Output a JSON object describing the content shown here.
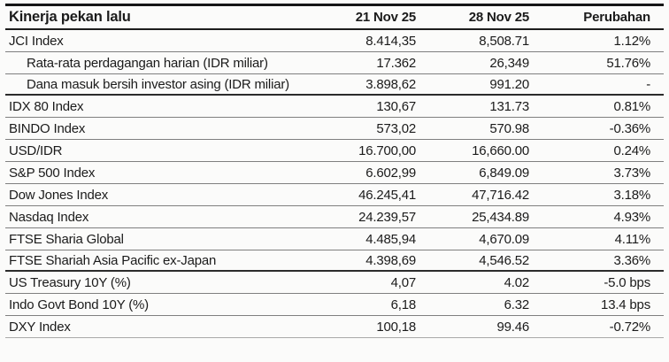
{
  "colors": {
    "background": "#fbfbfa",
    "text": "#1b1b1b",
    "heavy_rule": "#161616",
    "thin_rule": "#7f7f7f",
    "section_rule": "#2b2b2b"
  },
  "chart_data": {
    "type": "table",
    "title": "Kinerja pekan lalu",
    "columns": [
      "21 Nov 25",
      "28 Nov 25",
      "Perubahan"
    ],
    "rows": [
      {
        "label": "JCI Index",
        "prev": "8.414,35",
        "curr": "8,508.71",
        "change": "1.12%"
      },
      {
        "label": "Rata-rata perdagangan harian (IDR miliar)",
        "prev": "17.362",
        "curr": "26,349",
        "change": "51.76%"
      },
      {
        "label": "Dana masuk bersih investor asing (IDR miliar)",
        "prev": "3.898,62",
        "curr": "991.20",
        "change": "-"
      },
      {
        "label": "IDX 80 Index",
        "prev": "130,67",
        "curr": "131.73",
        "change": "0.81%"
      },
      {
        "label": "BINDO Index",
        "prev": "573,02",
        "curr": "570.98",
        "change": "-0.36%"
      },
      {
        "label": "USD/IDR",
        "prev": "16.700,00",
        "curr": "16,660.00",
        "change": "0.24%"
      },
      {
        "label": "S&P 500 Index",
        "prev": "6.602,99",
        "curr": "6,849.09",
        "change": "3.73%"
      },
      {
        "label": "Dow Jones Index",
        "prev": "46.245,41",
        "curr": "47,716.42",
        "change": "3.18%"
      },
      {
        "label": "Nasdaq Index",
        "prev": "24.239,57",
        "curr": "25,434.89",
        "change": "4.93%"
      },
      {
        "label": "FTSE Sharia Global",
        "prev": "4.485,94",
        "curr": "4,670.09",
        "change": "4.11%"
      },
      {
        "label": "FTSE Shariah Asia Pacific ex-Japan",
        "prev": "4.398,69",
        "curr": "4,546.52",
        "change": "3.36%"
      },
      {
        "label": "US Treasury 10Y (%)",
        "prev": "4,07",
        "curr": "4.02",
        "change": "-5.0 bps"
      },
      {
        "label": "Indo Govt Bond 10Y (%)",
        "prev": "6,18",
        "curr": "6.32",
        "change": "13.4 bps"
      },
      {
        "label": "DXY Index",
        "prev": "100,18",
        "curr": "99.46",
        "change": "-0.72%"
      }
    ]
  }
}
